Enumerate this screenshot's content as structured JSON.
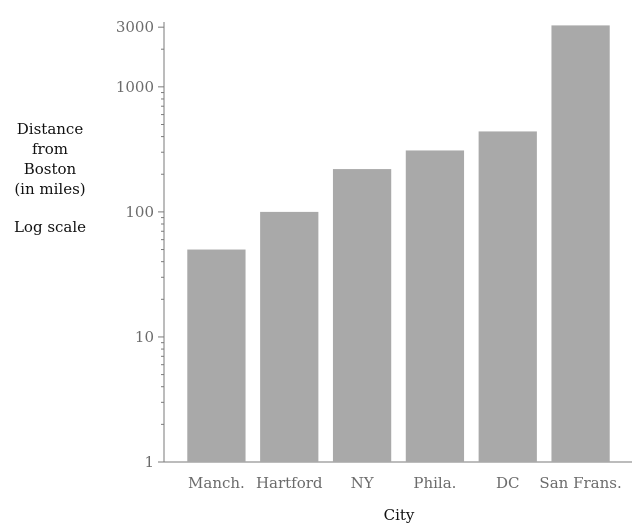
{
  "chart_data": {
    "type": "bar",
    "categories": [
      "Manch.",
      "Hartford",
      "NY",
      "Phila.",
      "DC",
      "San Frans."
    ],
    "values": [
      50,
      100,
      220,
      310,
      440,
      3100
    ],
    "title": "",
    "xlabel": "City",
    "ylabel_lines": [
      "Distance",
      "from",
      "Boston",
      "(in miles)"
    ],
    "ylabel_note": "Log scale",
    "y_scale": "log",
    "ylim": [
      1,
      3300
    ],
    "y_ticks": [
      1,
      10,
      100,
      1000,
      3000
    ],
    "y_tick_labels": [
      "1",
      "10",
      "100",
      "1000",
      "3000"
    ],
    "grid": false,
    "bar_color": "#a9a9a9"
  }
}
